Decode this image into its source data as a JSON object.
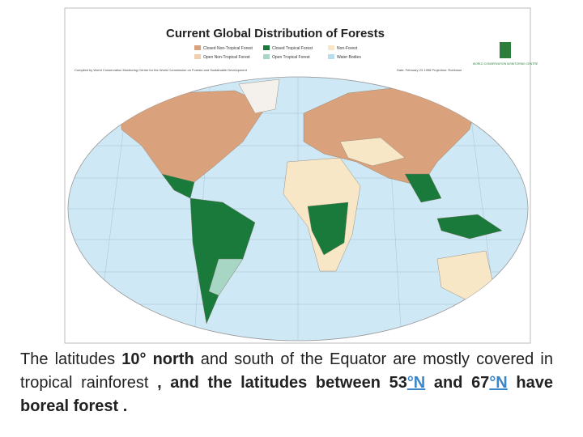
{
  "map": {
    "title": "Current Global Distribution of Forests",
    "legend": [
      "Closed Non-Tropical Forest",
      "Closed Tropical Forest",
      "Non-Forest",
      "Open Non-Tropical Forest",
      "Open Tropical Forest",
      "Water Bodies"
    ],
    "credit": "Compiled by World Conservation Monitoring Centre for the World Commission on Forests and Sustainable Development",
    "date": "Date: February 23 1998   Projection: Robinson",
    "logo": "WORLD CONSERVATION MONITORING CENTRE"
  },
  "caption": [
    "The latitudes ",
    "10° north",
    " and south of the Equator  are mostly covered in tropical rainforest ",
    ", and the latitudes between 53",
    "°N",
    " and 67",
    "°N",
    " have boreal forest ."
  ]
}
